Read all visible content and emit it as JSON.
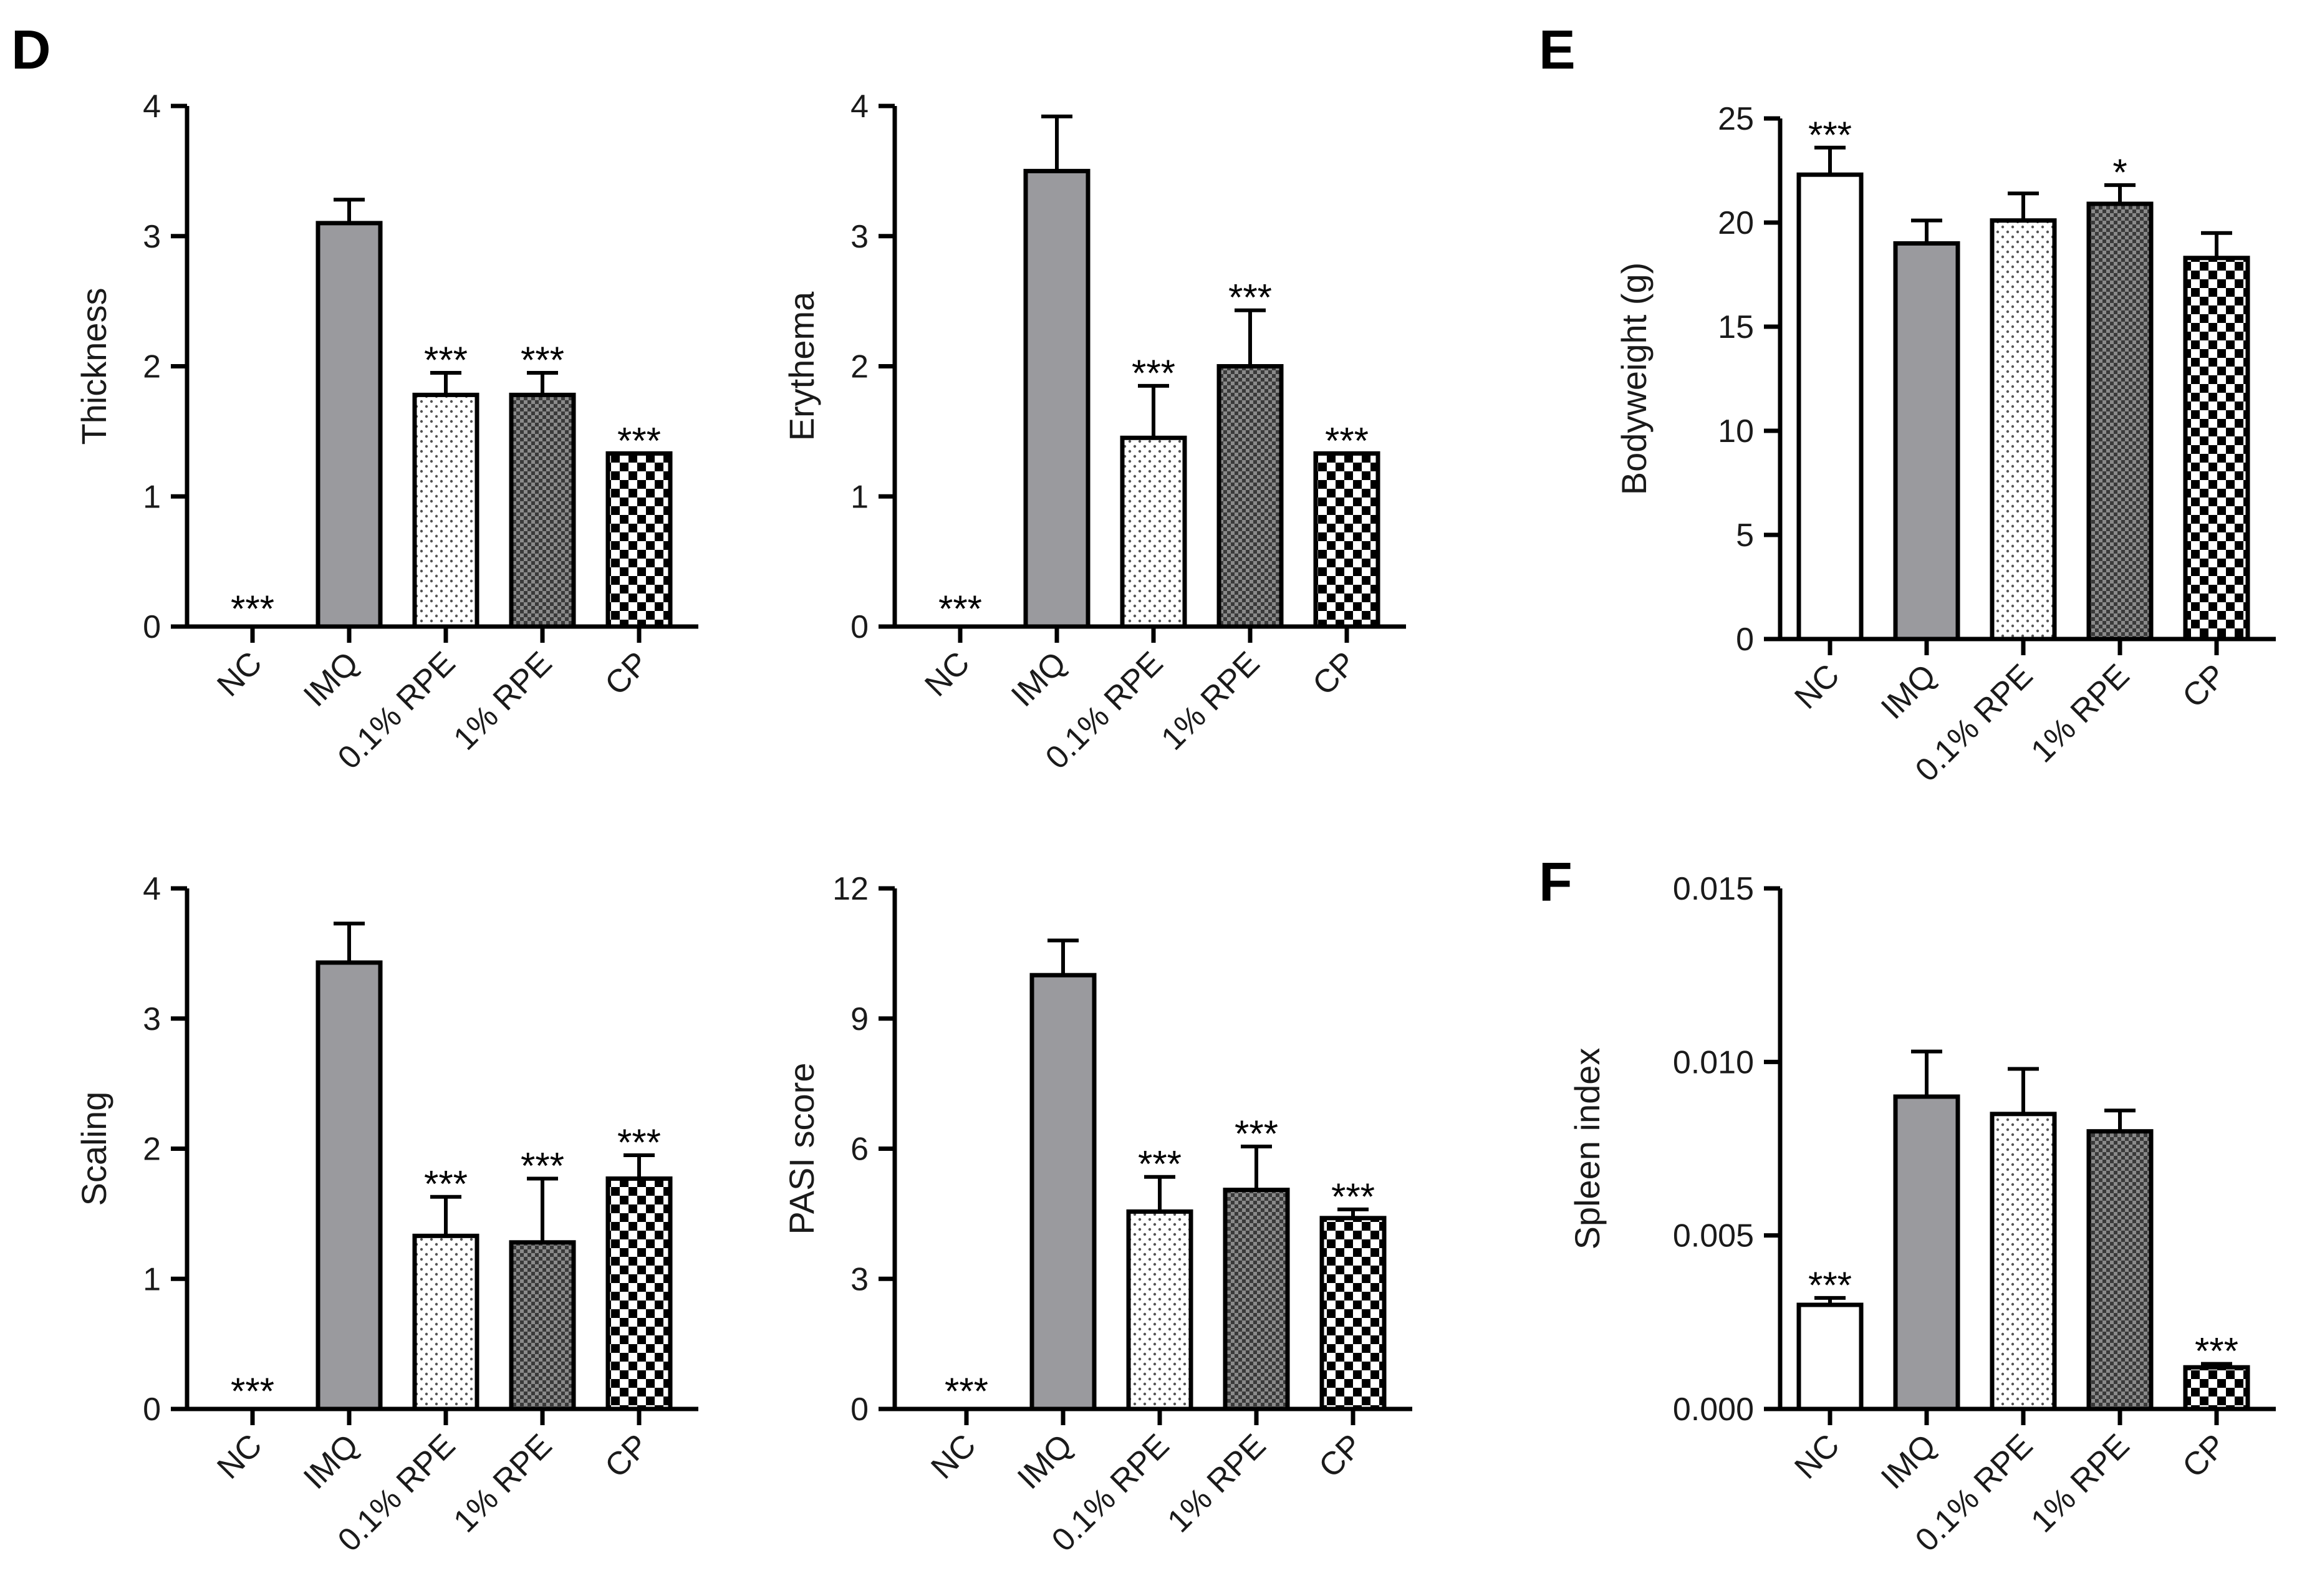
{
  "panel_labels": {
    "d": "D",
    "e": "E",
    "f": "F"
  },
  "colors": {
    "nc": "#ffffff",
    "imq": "#9a9a9e",
    "axis": "#000000"
  },
  "chart_data": [
    {
      "id": "thickness",
      "type": "bar",
      "ylabel": "Thickness",
      "categories": [
        "NC",
        "IMQ",
        "0.1% RPE",
        "1% RPE",
        "CP"
      ],
      "patterns": [
        "none",
        "solid",
        "dots",
        "fine-check",
        "checker"
      ],
      "values": [
        0,
        3.1,
        1.78,
        1.78,
        1.33
      ],
      "errors": [
        0,
        0.18,
        0.17,
        0.17,
        0
      ],
      "significance": [
        "***",
        "",
        "***",
        "***",
        "***"
      ],
      "ylim": [
        0,
        4
      ],
      "yticks": [
        0,
        1,
        2,
        3,
        4
      ],
      "yticklabels": [
        "0",
        "1",
        "2",
        "3",
        "4"
      ]
    },
    {
      "id": "erythema",
      "type": "bar",
      "ylabel": "Erythema",
      "categories": [
        "NC",
        "IMQ",
        "0.1% RPE",
        "1% RPE",
        "CP"
      ],
      "patterns": [
        "none",
        "solid",
        "dots",
        "fine-check",
        "checker"
      ],
      "values": [
        0,
        3.5,
        1.45,
        2.0,
        1.33
      ],
      "errors": [
        0,
        0.42,
        0.4,
        0.43,
        0
      ],
      "significance": [
        "***",
        "",
        "***",
        "***",
        "***"
      ],
      "ylim": [
        0,
        4
      ],
      "yticks": [
        0,
        1,
        2,
        3,
        4
      ],
      "yticklabels": [
        "0",
        "1",
        "2",
        "3",
        "4"
      ]
    },
    {
      "id": "bodyweight",
      "type": "bar",
      "ylabel": "Bodyweight (g)",
      "categories": [
        "NC",
        "IMQ",
        "0.1% RPE",
        "1% RPE",
        "CP"
      ],
      "patterns": [
        "open",
        "solid",
        "dots",
        "fine-check",
        "checker"
      ],
      "values": [
        22.3,
        19.0,
        20.1,
        20.9,
        18.3
      ],
      "errors": [
        1.3,
        1.1,
        1.3,
        0.9,
        1.2
      ],
      "significance": [
        "***",
        "",
        "",
        "*",
        ""
      ],
      "ylim": [
        0,
        25
      ],
      "yticks": [
        0,
        5,
        10,
        15,
        20,
        25
      ],
      "yticklabels": [
        "0",
        "5",
        "10",
        "15",
        "20",
        "25"
      ]
    },
    {
      "id": "scaling",
      "type": "bar",
      "ylabel": "Scaling",
      "categories": [
        "NC",
        "IMQ",
        "0.1% RPE",
        "1% RPE",
        "CP"
      ],
      "patterns": [
        "none",
        "solid",
        "dots",
        "fine-check",
        "checker"
      ],
      "values": [
        0,
        3.43,
        1.33,
        1.28,
        1.77
      ],
      "errors": [
        0,
        0.3,
        0.3,
        0.49,
        0.18
      ],
      "significance": [
        "***",
        "",
        "***",
        "***",
        "***"
      ],
      "ylim": [
        0,
        4
      ],
      "yticks": [
        0,
        1,
        2,
        3,
        4
      ],
      "yticklabels": [
        "0",
        "1",
        "2",
        "3",
        "4"
      ]
    },
    {
      "id": "pasi",
      "type": "bar",
      "ylabel": "PASI score",
      "categories": [
        "NC",
        "IMQ",
        "0.1% RPE",
        "1% RPE",
        "CP"
      ],
      "patterns": [
        "none",
        "solid",
        "dots",
        "fine-check",
        "checker"
      ],
      "values": [
        0,
        10.0,
        4.55,
        5.05,
        4.4
      ],
      "errors": [
        0,
        0.8,
        0.8,
        1.0,
        0.2
      ],
      "significance": [
        "***",
        "",
        "***",
        "***",
        "***"
      ],
      "ylim": [
        0,
        12
      ],
      "yticks": [
        0,
        3,
        6,
        9,
        12
      ],
      "yticklabels": [
        "0",
        "3",
        "6",
        "9",
        "12"
      ]
    },
    {
      "id": "spleen",
      "type": "bar",
      "ylabel": "Spleen index",
      "categories": [
        "NC",
        "IMQ",
        "0.1% RPE",
        "1% RPE",
        "CP"
      ],
      "patterns": [
        "open",
        "solid",
        "dots",
        "fine-check",
        "checker"
      ],
      "values": [
        0.003,
        0.009,
        0.0085,
        0.008,
        0.0012
      ],
      "errors": [
        0.0002,
        0.0013,
        0.0013,
        0.0006,
        0.0001
      ],
      "significance": [
        "***",
        "",
        "",
        "",
        "***"
      ],
      "ylim": [
        0,
        0.015
      ],
      "yticks": [
        0,
        0.005,
        0.01,
        0.015
      ],
      "yticklabels": [
        "0.000",
        "0.005",
        "0.010",
        "0.015"
      ]
    }
  ]
}
